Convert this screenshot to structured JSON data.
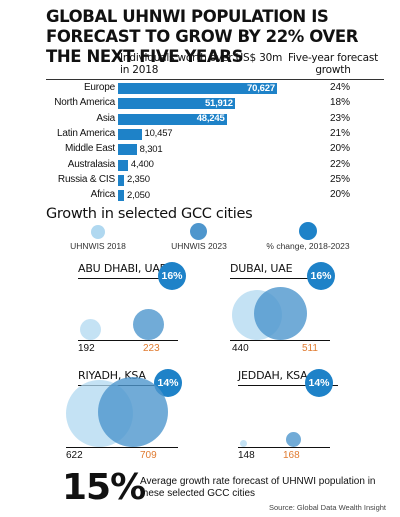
{
  "title": "GLOBAL UHNWI POPULATION IS FORECAST TO GROW BY 22% OVER THE NEXT FIVE YEARS",
  "colors": {
    "bar": "#1e82c8",
    "uhnwis_2018": "#b0d8f0",
    "uhnwis_2023": "#4e96cd",
    "pct_change": "#1e82c8",
    "value_2023_text": "#e07b30"
  },
  "chart_data": [
    {
      "type": "bar",
      "orientation": "horizontal",
      "column_header_left": "Individuals worth over US$ 30m in 2018",
      "column_header_right": "Five-year forecast growth",
      "categories": [
        "Europe",
        "North America",
        "Asia",
        "Latin America",
        "Middle East",
        "Australasia",
        "Russia & CIS",
        "Africa"
      ],
      "values": [
        70627,
        51912,
        48245,
        10457,
        8301,
        4400,
        2350,
        2050
      ],
      "value_labels": [
        "70,627",
        "51,912",
        "48,245",
        "10,457",
        "8,301",
        "4,400",
        "2,350",
        "2,050"
      ],
      "growth": [
        "24%",
        "18%",
        "23%",
        "21%",
        "20%",
        "22%",
        "25%",
        "20%"
      ],
      "xlim": [
        0,
        72000
      ]
    },
    {
      "type": "bubble",
      "title": "Growth in selected GCC cities",
      "legend": [
        "UHNWIS 2018",
        "UHNWIS 2023",
        "% change, 2018-2023"
      ],
      "cities": [
        {
          "name": "ABU DHABI, UAE",
          "uhnwis_2018": 192,
          "uhnwis_2023": 223,
          "label_2018": "192",
          "label_2023": "223",
          "pct_change": "16%"
        },
        {
          "name": "DUBAI, UAE",
          "uhnwis_2018": 440,
          "uhnwis_2023": 511,
          "label_2018": "440",
          "label_2023": "511",
          "pct_change": "16%"
        },
        {
          "name": "RIYADH, KSA",
          "uhnwis_2018": 622,
          "uhnwis_2023": 709,
          "label_2018": "622",
          "label_2023": "709",
          "pct_change": "14%"
        },
        {
          "name": "JEDDAH, KSA",
          "uhnwis_2018": 148,
          "uhnwis_2023": 168,
          "label_2018": "148",
          "label_2023": "168",
          "pct_change": "14%"
        }
      ]
    }
  ],
  "footer": {
    "big_pct": "15%",
    "text": "Average growth rate forecast of UHNWI population in these selected GCC cities",
    "source": "Source: Global Data Wealth Insight"
  }
}
